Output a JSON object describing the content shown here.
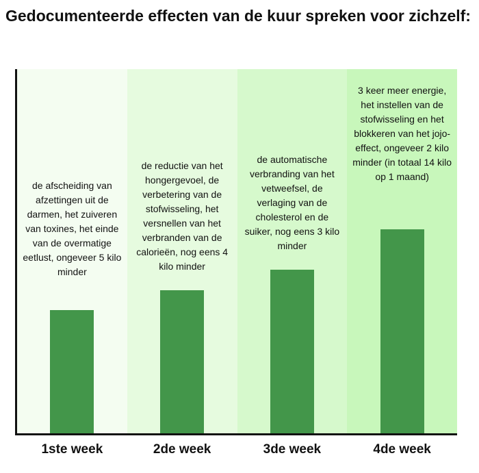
{
  "title": "Gedocumenteerde effecten van de kuur spreken voor zichzelf:",
  "chart_data": {
    "type": "bar",
    "categories": [
      "1ste week",
      "2de week",
      "3de week",
      "4de week"
    ],
    "values": [
      180,
      209,
      239,
      298
    ],
    "ylim": [
      0,
      532
    ],
    "annotations": [
      "de afscheiding van afzettingen uit de darmen, het zuiveren van toxines, het einde van de overmatige eetlust, ongeveer 5 kilo minder",
      "de reductie van het hongergevoel, de verbetering van de stofwisseling, het versnellen van het verbranden van de calorieën, nog eens 4 kilo minder",
      "de automatische verbranding van het vetweefsel, de verlaging van de cholesterol en de suiker, nog eens 3 kilo minder",
      "3 keer meer energie, het instellen van de stofwisseling en het blokkeren van het jojo-effect, ongeveer 2 kilo minder (in totaal 14 kilo op 1 maand)"
    ],
    "grid": false,
    "legend": "none",
    "colors": {
      "bar": "#43964a",
      "column_backgrounds": [
        "#f4fdf1",
        "#e6fbdf",
        "#d6f9cc",
        "#c8f7bb"
      ],
      "axis": "#111111"
    }
  }
}
